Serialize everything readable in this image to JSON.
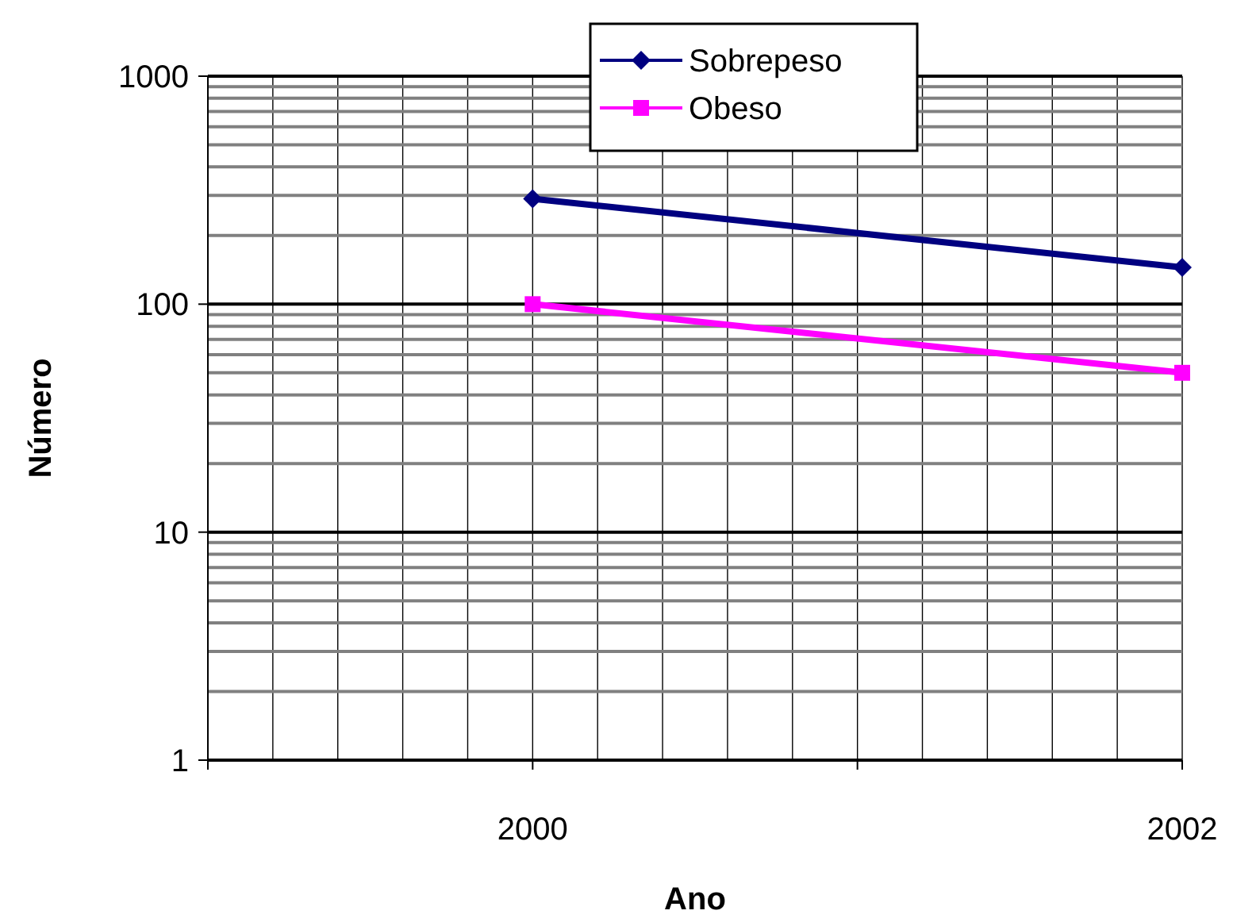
{
  "chart_data": {
    "type": "line",
    "xlabel": "Ano",
    "ylabel": "Número",
    "x": [
      2000,
      2002
    ],
    "series": [
      {
        "name": "Sobrepeso",
        "color": "#000080",
        "values": [
          290,
          145
        ],
        "marker": "diamond"
      },
      {
        "name": "Obeso",
        "color": "#ff00ff",
        "values": [
          100,
          50
        ],
        "marker": "square"
      }
    ],
    "log": true,
    "xlim": [
      1999,
      2002
    ],
    "xticks": [
      {
        "value": 1999,
        "label": null
      },
      2000,
      {
        "value": 2001,
        "label": null
      },
      2002
    ],
    "ylim": [
      1,
      1000
    ],
    "yticks": [
      1,
      10,
      100,
      1000
    ],
    "grid": true,
    "legend": "top",
    "line_style": "solid"
  }
}
